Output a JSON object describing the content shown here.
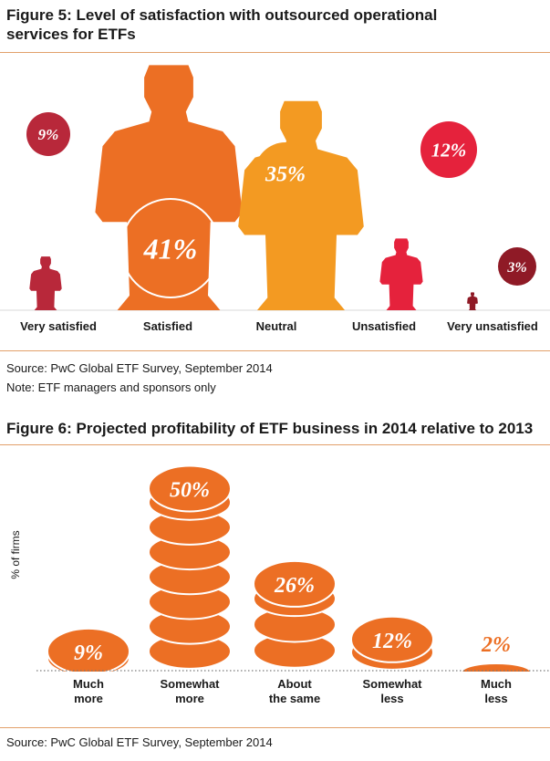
{
  "figure5": {
    "title": "Figure 5: Level of satisfaction with outsourced operational services for ETFs",
    "source": "Source: PwC Global ETF Survey, September 2014",
    "note": "Note: ETF managers and sponsors only"
  },
  "figure6": {
    "title": "Figure 6: Projected profitability of ETF business in 2014 relative to 2013",
    "source": "Source: PwC Global ETF Survey, September 2014"
  },
  "chart_data": [
    {
      "type": "bar",
      "title": "Figure 5: Level of satisfaction with outsourced operational services for ETFs",
      "categories": [
        "Very satisfied",
        "Satisfied",
        "Neutral",
        "Unsatisfied",
        "Very unsatisfied"
      ],
      "values": [
        9,
        41,
        35,
        12,
        3
      ],
      "value_labels": [
        "9%",
        "41%",
        "35%",
        "12%",
        "3%"
      ],
      "colors": [
        "#b8283a",
        "#ec6f24",
        "#f39a22",
        "#e5223c",
        "#8f1a26"
      ],
      "marker": "person-silhouette",
      "grid": false
    },
    {
      "type": "bar",
      "title": "Figure 6: Projected profitability of ETF business in 2014 relative to 2013",
      "ylabel": "% of firms",
      "categories": [
        "Much more",
        "Somewhat more",
        "About the same",
        "Somewhat less",
        "Much less"
      ],
      "category_lines": [
        [
          "Much",
          "more"
        ],
        [
          "Somewhat",
          "more"
        ],
        [
          "About",
          "the same"
        ],
        [
          "Somewhat",
          "less"
        ],
        [
          "Much",
          "less"
        ]
      ],
      "values": [
        9,
        50,
        26,
        12,
        2
      ],
      "value_labels": [
        "9%",
        "50%",
        "26%",
        "12%",
        "2%"
      ],
      "color": "#ec6f24",
      "marker": "coin-stack",
      "grid": false
    }
  ]
}
